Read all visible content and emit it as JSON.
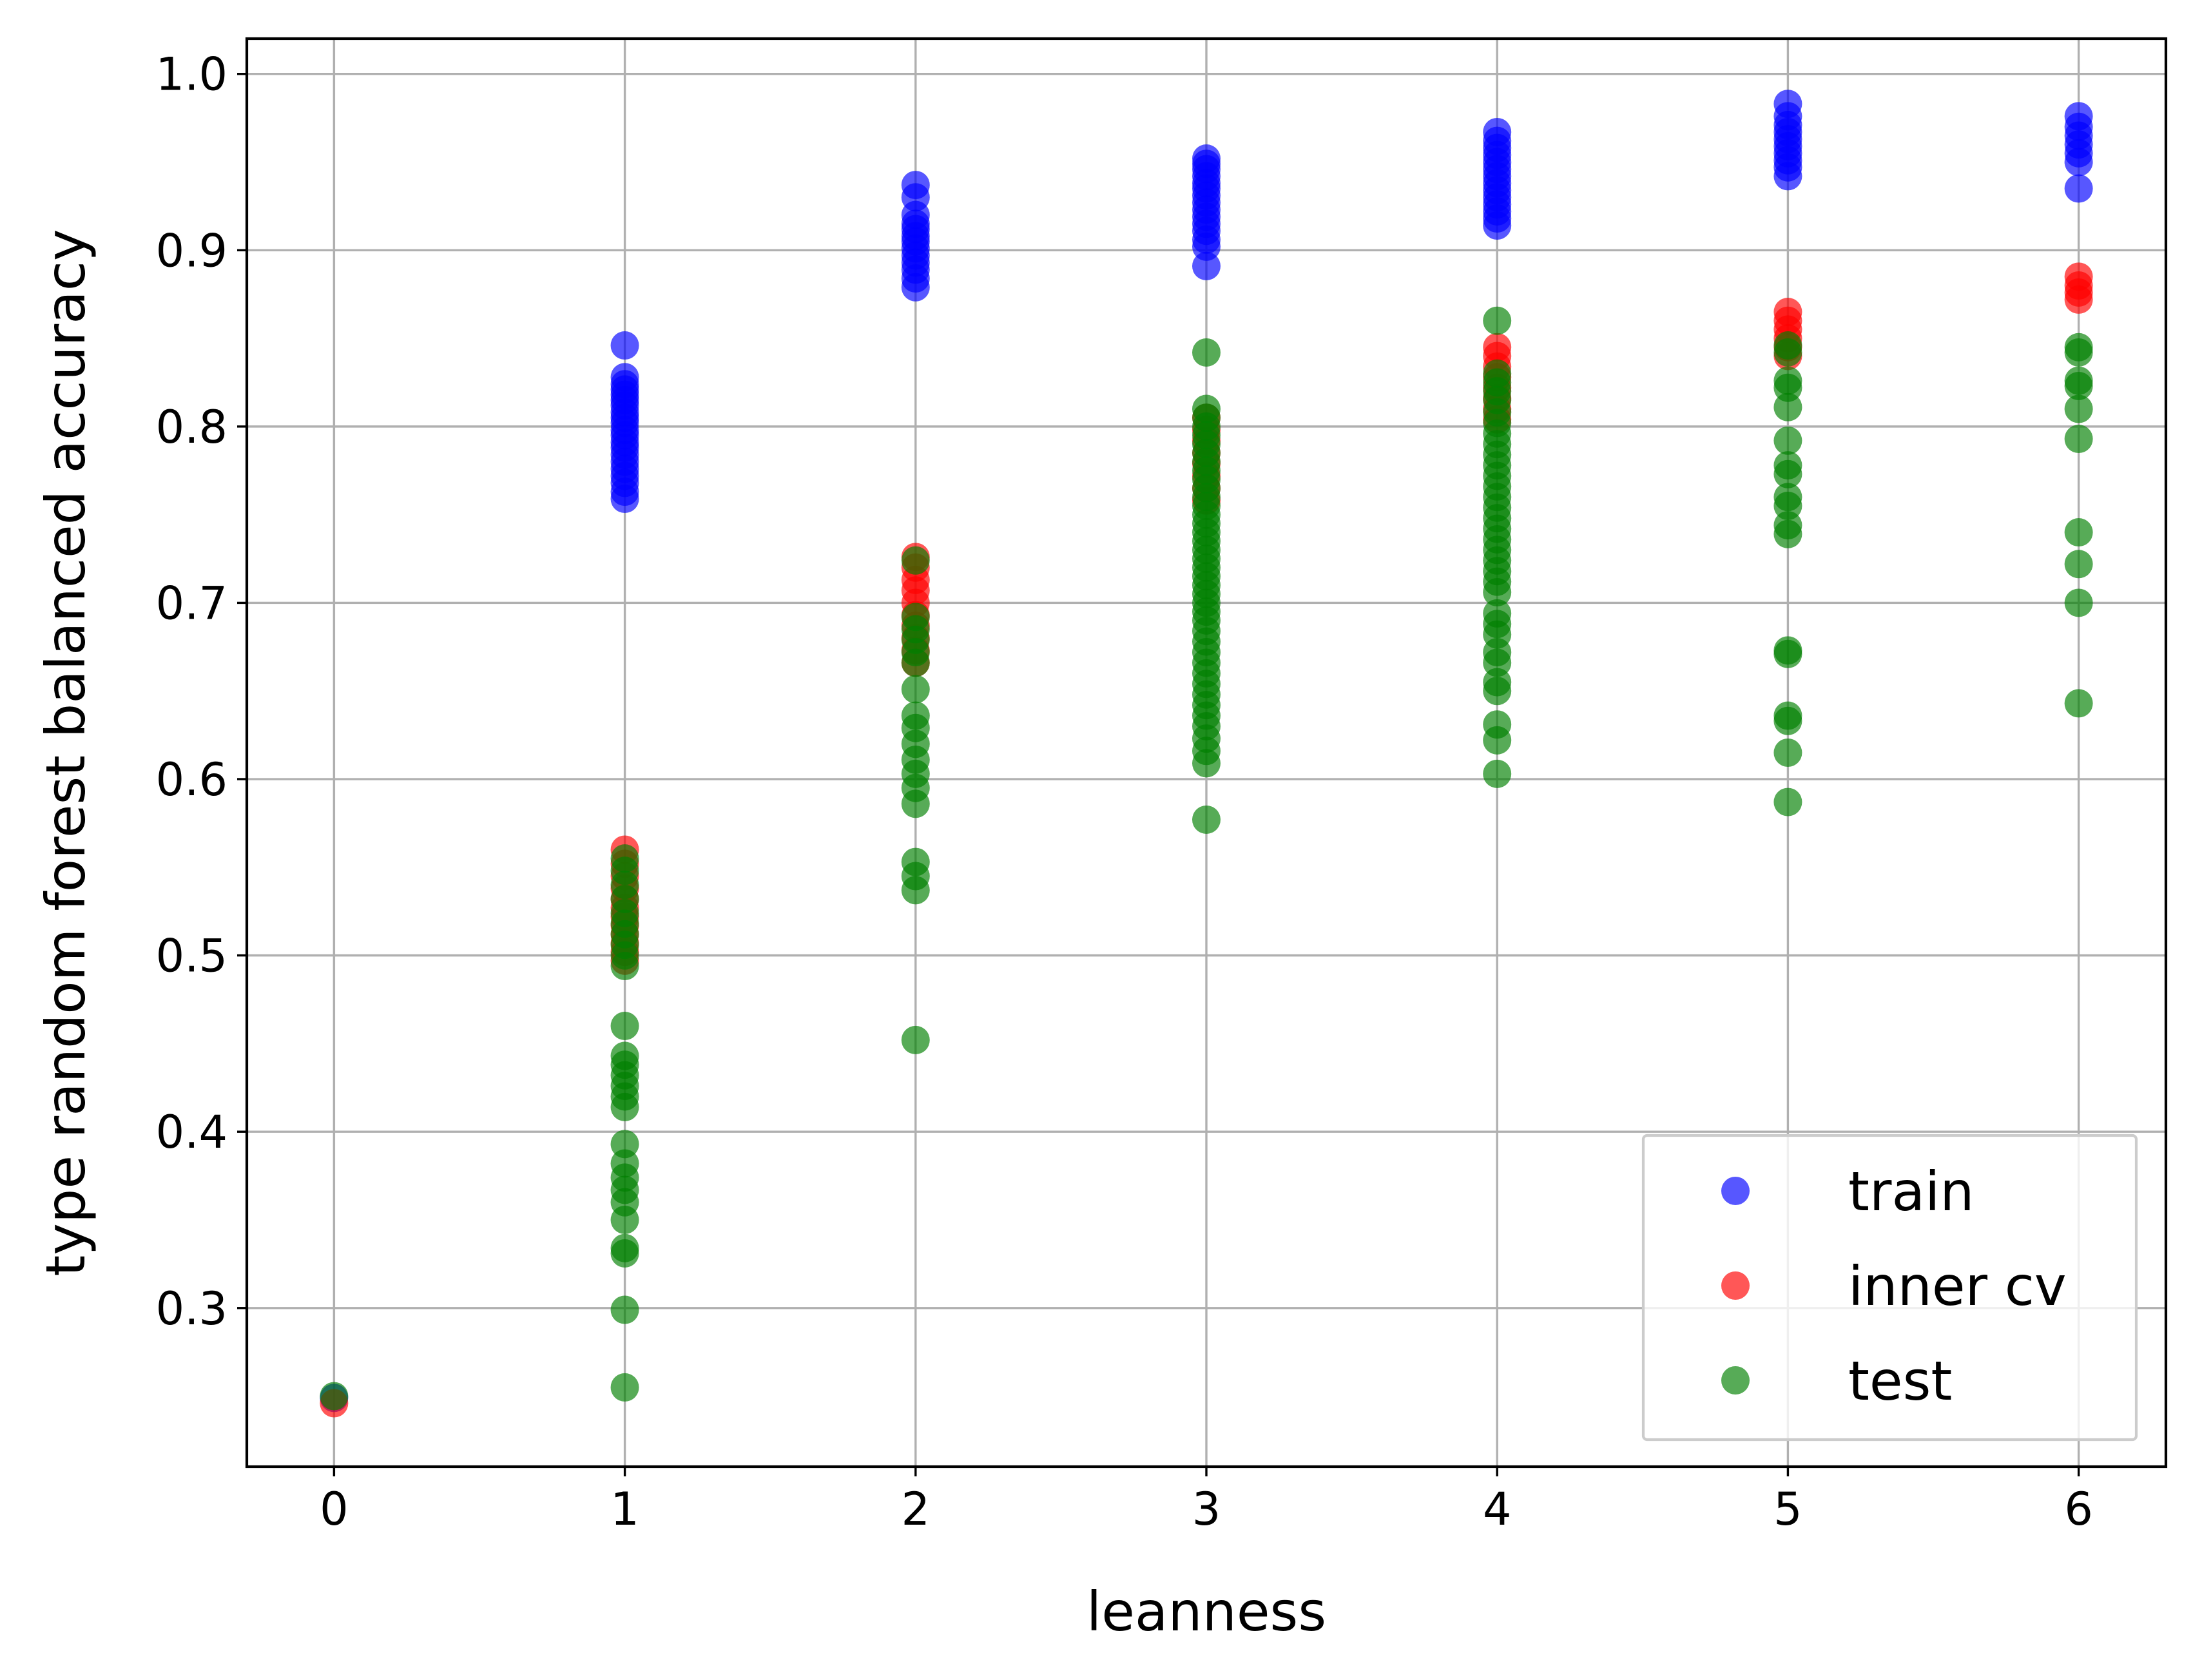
{
  "chart_data": {
    "type": "scatter",
    "xlabel": "leanness",
    "ylabel": "type random forest balanced accuracy",
    "xlim": [
      -0.3,
      6.3
    ],
    "ylim": [
      0.21,
      1.02
    ],
    "xticks": [
      0,
      1,
      2,
      3,
      4,
      5,
      6
    ],
    "xtick_labels": [
      "0",
      "1",
      "2",
      "3",
      "4",
      "5",
      "6"
    ],
    "yticks": [
      0.3,
      0.4,
      0.5,
      0.6,
      0.7,
      0.8,
      0.9,
      1.0
    ],
    "ytick_labels": [
      "0.3",
      "0.4",
      "0.5",
      "0.6",
      "0.7",
      "0.8",
      "0.9",
      "1.0"
    ],
    "grid": true,
    "legend": {
      "position": "lower right",
      "labels": [
        "train",
        "inner cv",
        "test"
      ]
    },
    "series": [
      {
        "name": "train",
        "color": "#0000ff",
        "points": [
          [
            0,
            0.249
          ],
          [
            1,
            0.846
          ],
          [
            1,
            0.828
          ],
          [
            1,
            0.824
          ],
          [
            1,
            0.821
          ],
          [
            1,
            0.818
          ],
          [
            1,
            0.815
          ],
          [
            1,
            0.812
          ],
          [
            1,
            0.808
          ],
          [
            1,
            0.805
          ],
          [
            1,
            0.802
          ],
          [
            1,
            0.798
          ],
          [
            1,
            0.795
          ],
          [
            1,
            0.791
          ],
          [
            1,
            0.788
          ],
          [
            1,
            0.784
          ],
          [
            1,
            0.78
          ],
          [
            1,
            0.776
          ],
          [
            1,
            0.772
          ],
          [
            1,
            0.768
          ],
          [
            1,
            0.763
          ],
          [
            1,
            0.759
          ],
          [
            2,
            0.937
          ],
          [
            2,
            0.93
          ],
          [
            2,
            0.92
          ],
          [
            2,
            0.915
          ],
          [
            2,
            0.912
          ],
          [
            2,
            0.908
          ],
          [
            2,
            0.905
          ],
          [
            2,
            0.901
          ],
          [
            2,
            0.897
          ],
          [
            2,
            0.893
          ],
          [
            2,
            0.889
          ],
          [
            2,
            0.884
          ],
          [
            2,
            0.879
          ],
          [
            3,
            0.952
          ],
          [
            3,
            0.949
          ],
          [
            3,
            0.946
          ],
          [
            3,
            0.942
          ],
          [
            3,
            0.938
          ],
          [
            3,
            0.935
          ],
          [
            3,
            0.931
          ],
          [
            3,
            0.927
          ],
          [
            3,
            0.923
          ],
          [
            3,
            0.919
          ],
          [
            3,
            0.915
          ],
          [
            3,
            0.911
          ],
          [
            3,
            0.906
          ],
          [
            3,
            0.902
          ],
          [
            3,
            0.891
          ],
          [
            4,
            0.967
          ],
          [
            4,
            0.962
          ],
          [
            4,
            0.958
          ],
          [
            4,
            0.954
          ],
          [
            4,
            0.95
          ],
          [
            4,
            0.946
          ],
          [
            4,
            0.942
          ],
          [
            4,
            0.938
          ],
          [
            4,
            0.934
          ],
          [
            4,
            0.93
          ],
          [
            4,
            0.926
          ],
          [
            4,
            0.922
          ],
          [
            4,
            0.918
          ],
          [
            4,
            0.914
          ],
          [
            5,
            0.983
          ],
          [
            5,
            0.976
          ],
          [
            5,
            0.971
          ],
          [
            5,
            0.967
          ],
          [
            5,
            0.963
          ],
          [
            5,
            0.959
          ],
          [
            5,
            0.955
          ],
          [
            5,
            0.951
          ],
          [
            5,
            0.947
          ],
          [
            5,
            0.942
          ],
          [
            6,
            0.976
          ],
          [
            6,
            0.97
          ],
          [
            6,
            0.965
          ],
          [
            6,
            0.96
          ],
          [
            6,
            0.955
          ],
          [
            6,
            0.95
          ],
          [
            6,
            0.935
          ]
        ]
      },
      {
        "name": "inner cv",
        "color": "#ff0000",
        "points": [
          [
            0,
            0.246
          ],
          [
            1,
            0.56
          ],
          [
            1,
            0.552
          ],
          [
            1,
            0.545
          ],
          [
            1,
            0.538
          ],
          [
            1,
            0.532
          ],
          [
            1,
            0.527
          ],
          [
            1,
            0.522
          ],
          [
            1,
            0.517
          ],
          [
            1,
            0.512
          ],
          [
            1,
            0.507
          ],
          [
            1,
            0.502
          ],
          [
            1,
            0.497
          ],
          [
            2,
            0.726
          ],
          [
            2,
            0.72
          ],
          [
            2,
            0.713
          ],
          [
            2,
            0.707
          ],
          [
            2,
            0.7
          ],
          [
            2,
            0.693
          ],
          [
            2,
            0.687
          ],
          [
            2,
            0.68
          ],
          [
            2,
            0.673
          ],
          [
            2,
            0.666
          ],
          [
            3,
            0.805
          ],
          [
            3,
            0.798
          ],
          [
            3,
            0.792
          ],
          [
            3,
            0.785
          ],
          [
            3,
            0.779
          ],
          [
            3,
            0.772
          ],
          [
            3,
            0.765
          ],
          [
            3,
            0.758
          ],
          [
            4,
            0.845
          ],
          [
            4,
            0.84
          ],
          [
            4,
            0.834
          ],
          [
            4,
            0.828
          ],
          [
            4,
            0.822
          ],
          [
            4,
            0.816
          ],
          [
            4,
            0.81
          ],
          [
            4,
            0.804
          ],
          [
            5,
            0.865
          ],
          [
            5,
            0.86
          ],
          [
            5,
            0.855
          ],
          [
            5,
            0.85
          ],
          [
            5,
            0.845
          ],
          [
            5,
            0.84
          ],
          [
            6,
            0.885
          ],
          [
            6,
            0.88
          ],
          [
            6,
            0.876
          ],
          [
            6,
            0.872
          ]
        ]
      },
      {
        "name": "test",
        "color": "#008000",
        "points": [
          [
            0,
            0.25
          ],
          [
            1,
            0.555
          ],
          [
            1,
            0.548
          ],
          [
            1,
            0.54
          ],
          [
            1,
            0.532
          ],
          [
            1,
            0.524
          ],
          [
            1,
            0.518
          ],
          [
            1,
            0.512
          ],
          [
            1,
            0.506
          ],
          [
            1,
            0.5
          ],
          [
            1,
            0.494
          ],
          [
            1,
            0.46
          ],
          [
            1,
            0.443
          ],
          [
            1,
            0.438
          ],
          [
            1,
            0.432
          ],
          [
            1,
            0.426
          ],
          [
            1,
            0.42
          ],
          [
            1,
            0.414
          ],
          [
            1,
            0.393
          ],
          [
            1,
            0.382
          ],
          [
            1,
            0.374
          ],
          [
            1,
            0.367
          ],
          [
            1,
            0.36
          ],
          [
            1,
            0.35
          ],
          [
            1,
            0.334
          ],
          [
            1,
            0.331
          ],
          [
            1,
            0.299
          ],
          [
            1,
            0.255
          ],
          [
            2,
            0.724
          ],
          [
            2,
            0.692
          ],
          [
            2,
            0.685
          ],
          [
            2,
            0.679
          ],
          [
            2,
            0.672
          ],
          [
            2,
            0.666
          ],
          [
            2,
            0.651
          ],
          [
            2,
            0.636
          ],
          [
            2,
            0.629
          ],
          [
            2,
            0.62
          ],
          [
            2,
            0.611
          ],
          [
            2,
            0.603
          ],
          [
            2,
            0.595
          ],
          [
            2,
            0.586
          ],
          [
            2,
            0.553
          ],
          [
            2,
            0.545
          ],
          [
            2,
            0.537
          ],
          [
            2,
            0.452
          ],
          [
            3,
            0.842
          ],
          [
            3,
            0.81
          ],
          [
            3,
            0.805
          ],
          [
            3,
            0.8
          ],
          [
            3,
            0.795
          ],
          [
            3,
            0.79
          ],
          [
            3,
            0.785
          ],
          [
            3,
            0.78
          ],
          [
            3,
            0.775
          ],
          [
            3,
            0.77
          ],
          [
            3,
            0.765
          ],
          [
            3,
            0.76
          ],
          [
            3,
            0.755
          ],
          [
            3,
            0.75
          ],
          [
            3,
            0.745
          ],
          [
            3,
            0.74
          ],
          [
            3,
            0.735
          ],
          [
            3,
            0.73
          ],
          [
            3,
            0.725
          ],
          [
            3,
            0.72
          ],
          [
            3,
            0.715
          ],
          [
            3,
            0.71
          ],
          [
            3,
            0.705
          ],
          [
            3,
            0.7
          ],
          [
            3,
            0.695
          ],
          [
            3,
            0.69
          ],
          [
            3,
            0.684
          ],
          [
            3,
            0.678
          ],
          [
            3,
            0.672
          ],
          [
            3,
            0.666
          ],
          [
            3,
            0.66
          ],
          [
            3,
            0.654
          ],
          [
            3,
            0.648
          ],
          [
            3,
            0.642
          ],
          [
            3,
            0.636
          ],
          [
            3,
            0.63
          ],
          [
            3,
            0.623
          ],
          [
            3,
            0.616
          ],
          [
            3,
            0.609
          ],
          [
            3,
            0.577
          ],
          [
            4,
            0.86
          ],
          [
            4,
            0.83
          ],
          [
            4,
            0.825
          ],
          [
            4,
            0.82
          ],
          [
            4,
            0.815
          ],
          [
            4,
            0.808
          ],
          [
            4,
            0.802
          ],
          [
            4,
            0.796
          ],
          [
            4,
            0.79
          ],
          [
            4,
            0.784
          ],
          [
            4,
            0.778
          ],
          [
            4,
            0.772
          ],
          [
            4,
            0.766
          ],
          [
            4,
            0.76
          ],
          [
            4,
            0.754
          ],
          [
            4,
            0.748
          ],
          [
            4,
            0.742
          ],
          [
            4,
            0.736
          ],
          [
            4,
            0.73
          ],
          [
            4,
            0.724
          ],
          [
            4,
            0.718
          ],
          [
            4,
            0.712
          ],
          [
            4,
            0.706
          ],
          [
            4,
            0.694
          ],
          [
            4,
            0.688
          ],
          [
            4,
            0.682
          ],
          [
            4,
            0.672
          ],
          [
            4,
            0.666
          ],
          [
            4,
            0.655
          ],
          [
            4,
            0.65
          ],
          [
            4,
            0.631
          ],
          [
            4,
            0.622
          ],
          [
            4,
            0.603
          ],
          [
            5,
            0.846
          ],
          [
            5,
            0.842
          ],
          [
            5,
            0.826
          ],
          [
            5,
            0.822
          ],
          [
            5,
            0.811
          ],
          [
            5,
            0.792
          ],
          [
            5,
            0.778
          ],
          [
            5,
            0.773
          ],
          [
            5,
            0.76
          ],
          [
            5,
            0.755
          ],
          [
            5,
            0.744
          ],
          [
            5,
            0.739
          ],
          [
            5,
            0.673
          ],
          [
            5,
            0.671
          ],
          [
            5,
            0.636
          ],
          [
            5,
            0.633
          ],
          [
            5,
            0.615
          ],
          [
            5,
            0.587
          ],
          [
            6,
            0.845
          ],
          [
            6,
            0.842
          ],
          [
            6,
            0.826
          ],
          [
            6,
            0.823
          ],
          [
            6,
            0.81
          ],
          [
            6,
            0.793
          ],
          [
            6,
            0.74
          ],
          [
            6,
            0.722
          ],
          [
            6,
            0.7
          ],
          [
            6,
            0.643
          ]
        ]
      }
    ]
  }
}
